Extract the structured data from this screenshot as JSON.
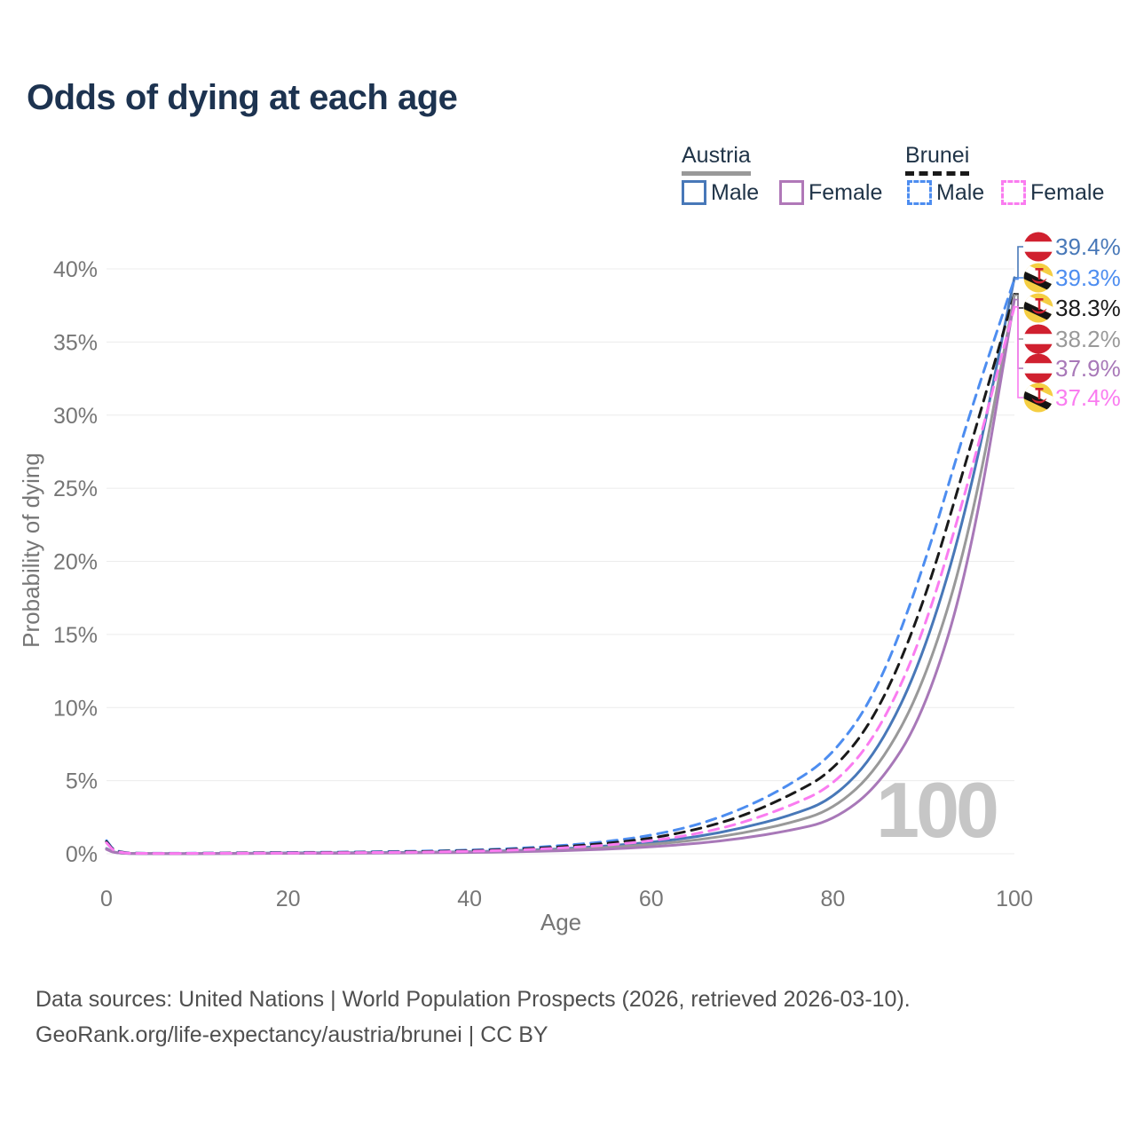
{
  "title": "Odds of dying at each age",
  "legend": {
    "groups": [
      {
        "title": "Austria",
        "line_style": "solid",
        "line_color": "#999999",
        "items": [
          {
            "label": "Male",
            "swatch_color": "#4878b8",
            "swatch_style": "solid"
          },
          {
            "label": "Female",
            "swatch_color": "#b078b8",
            "swatch_style": "solid"
          }
        ]
      },
      {
        "title": "Brunei",
        "line_style": "dashed",
        "line_color": "#1a1a1a",
        "items": [
          {
            "label": "Male",
            "swatch_color": "#4d8df0",
            "swatch_style": "dashed"
          },
          {
            "label": "Female",
            "swatch_color": "#fa7cf0",
            "swatch_style": "dashed"
          }
        ]
      }
    ]
  },
  "chart_data": {
    "type": "line",
    "title": "Odds of dying at each age",
    "xlabel": "Age",
    "ylabel": "Probability of dying",
    "grid": "horizontal",
    "legend_position": "top-right",
    "xlim": [
      0,
      100
    ],
    "ylim": [
      0,
      41.5
    ],
    "xticks": [
      0,
      20,
      40,
      60,
      80,
      100
    ],
    "yticks": [
      0,
      5,
      10,
      15,
      20,
      25,
      30,
      35,
      40
    ],
    "ytick_suffix": "%",
    "age_cursor_watermark": "100",
    "ages": [
      0,
      1,
      5,
      10,
      15,
      20,
      25,
      30,
      35,
      40,
      45,
      50,
      55,
      60,
      65,
      70,
      75,
      80,
      85,
      90,
      95,
      100
    ],
    "series": [
      {
        "name": "Austria Male",
        "country": "Austria",
        "sex": "Male",
        "color": "#4878b8",
        "dashed": false,
        "flag": "austria",
        "end_value": 39.4,
        "end_label": "39.4%",
        "label_slot": 0,
        "values": [
          0.36,
          0.03,
          0.01,
          0.01,
          0.03,
          0.06,
          0.07,
          0.08,
          0.1,
          0.14,
          0.21,
          0.33,
          0.52,
          0.78,
          1.15,
          1.75,
          2.55,
          3.7,
          7.0,
          13.5,
          24.0,
          39.4
        ]
      },
      {
        "name": "Brunei Male",
        "country": "Brunei",
        "sex": "Male",
        "color": "#4d8df0",
        "dashed": true,
        "flag": "brunei",
        "end_value": 39.3,
        "end_label": "39.3%",
        "label_slot": 1,
        "values": [
          0.9,
          0.07,
          0.03,
          0.04,
          0.07,
          0.09,
          0.11,
          0.14,
          0.18,
          0.25,
          0.36,
          0.55,
          0.82,
          1.25,
          1.95,
          3.05,
          4.6,
          6.7,
          11.2,
          19.5,
          30.0,
          39.3
        ]
      },
      {
        "name": "Brunei Both sexes",
        "country": "Brunei",
        "sex": "Both",
        "color": "#1a1a1a",
        "dashed": true,
        "flag": "brunei",
        "end_value": 38.3,
        "end_label": "38.3%",
        "label_slot": 2,
        "values": [
          0.83,
          0.06,
          0.02,
          0.03,
          0.06,
          0.07,
          0.09,
          0.11,
          0.15,
          0.21,
          0.3,
          0.47,
          0.7,
          1.05,
          1.65,
          2.55,
          3.9,
          5.6,
          9.6,
          17.0,
          27.5,
          38.3
        ]
      },
      {
        "name": "Austria Both sexes",
        "country": "Austria",
        "sex": "Both",
        "color": "#999999",
        "dashed": false,
        "flag": "austria",
        "end_value": 38.2,
        "end_label": "38.2%",
        "label_slot": 3,
        "values": [
          0.33,
          0.03,
          0.01,
          0.01,
          0.02,
          0.04,
          0.05,
          0.06,
          0.08,
          0.11,
          0.17,
          0.27,
          0.42,
          0.63,
          0.93,
          1.4,
          2.05,
          3.0,
          5.8,
          11.5,
          21.5,
          38.2
        ]
      },
      {
        "name": "Austria Female",
        "country": "Austria",
        "sex": "Female",
        "color": "#a878b8",
        "dashed": false,
        "flag": "austria",
        "end_value": 37.9,
        "end_label": "37.9%",
        "label_slot": 4,
        "values": [
          0.3,
          0.02,
          0.01,
          0.01,
          0.02,
          0.03,
          0.03,
          0.04,
          0.06,
          0.09,
          0.13,
          0.2,
          0.31,
          0.47,
          0.7,
          1.05,
          1.55,
          2.25,
          4.6,
          9.5,
          19.5,
          37.9
        ]
      },
      {
        "name": "Brunei Female",
        "country": "Brunei",
        "sex": "Female",
        "color": "#fa7cf0",
        "dashed": true,
        "flag": "brunei",
        "end_value": 37.4,
        "end_label": "37.4%",
        "label_slot": 5,
        "values": [
          0.75,
          0.05,
          0.02,
          0.03,
          0.04,
          0.05,
          0.07,
          0.09,
          0.12,
          0.17,
          0.25,
          0.39,
          0.58,
          0.88,
          1.35,
          2.1,
          3.2,
          4.6,
          8.2,
          15.0,
          25.5,
          37.4
        ]
      }
    ]
  },
  "colors": {
    "title": "#1d3350",
    "legend_text": "#1f3347",
    "axis_text": "#767676",
    "grid": "#ececec",
    "watermark": "#c6c6c6",
    "footer_text": "#4f4f4f",
    "flag_austria_red": "#d0202f",
    "flag_brunei_yellow": "#f5ce42",
    "flag_brunei_red": "#d0202f",
    "flag_black": "#141414",
    "flag_white": "#ffffff"
  },
  "footer": {
    "line1": "Data sources: United Nations | World Population Prospects (2026, retrieved 2026-03-10).",
    "line2": "GeoRank.org/life-expectancy/austria/brunei | CC BY"
  }
}
